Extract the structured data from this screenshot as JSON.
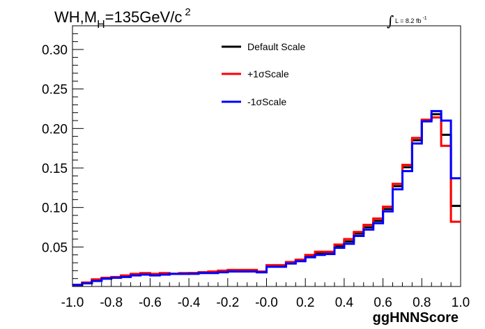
{
  "header": {
    "title_main": "WH,M",
    "title_sub": "H",
    "title_value": "=135GeV/c",
    "title_sup": "2",
    "lumi_label": "L = 8.2 fb",
    "lumi_sup": "-1"
  },
  "chart_data": {
    "type": "line",
    "xlabel": "ggHNNScore",
    "ylabel": "",
    "xlim": [
      -1.0,
      1.0
    ],
    "ylim": [
      0,
      0.33
    ],
    "x_ticks": [
      "-1.0",
      "-0.8",
      "-0.6",
      "-0.4",
      "-0.2",
      "-0.0",
      "0.2",
      "0.4",
      "0.6",
      "0.8",
      "1.0"
    ],
    "y_ticks": [
      "0.05",
      "0.10",
      "0.15",
      "0.20",
      "0.25",
      "0.30"
    ],
    "x_tick_values": [
      -1.0,
      -0.8,
      -0.6,
      -0.4,
      -0.2,
      0.0,
      0.2,
      0.4,
      0.6,
      0.8,
      1.0
    ],
    "y_tick_values": [
      0.05,
      0.1,
      0.15,
      0.2,
      0.25,
      0.3
    ],
    "bin_edges": [
      -1.0,
      -0.95,
      -0.9,
      -0.85,
      -0.8,
      -0.75,
      -0.7,
      -0.65,
      -0.6,
      -0.55,
      -0.5,
      -0.45,
      -0.4,
      -0.35,
      -0.3,
      -0.25,
      -0.2,
      -0.15,
      -0.1,
      -0.05,
      0.0,
      0.05,
      0.1,
      0.15,
      0.2,
      0.25,
      0.3,
      0.35,
      0.4,
      0.45,
      0.5,
      0.55,
      0.6,
      0.65,
      0.7,
      0.75,
      0.8,
      0.85,
      0.9,
      0.95,
      1.0
    ],
    "series": [
      {
        "name": "Default Scale",
        "color": "#000000",
        "values": [
          0.002,
          0.004,
          0.008,
          0.01,
          0.011,
          0.013,
          0.015,
          0.016,
          0.015,
          0.016,
          0.016,
          0.016,
          0.017,
          0.018,
          0.018,
          0.019,
          0.02,
          0.02,
          0.02,
          0.018,
          0.026,
          0.026,
          0.03,
          0.033,
          0.038,
          0.042,
          0.043,
          0.051,
          0.057,
          0.067,
          0.075,
          0.083,
          0.098,
          0.127,
          0.151,
          0.185,
          0.211,
          0.218,
          0.192,
          0.102
        ]
      },
      {
        "name": "+1σScale",
        "color": "#ff0000",
        "values": [
          0.002,
          0.005,
          0.009,
          0.011,
          0.012,
          0.014,
          0.016,
          0.017,
          0.016,
          0.017,
          0.016,
          0.017,
          0.017,
          0.018,
          0.019,
          0.02,
          0.021,
          0.021,
          0.021,
          0.019,
          0.027,
          0.027,
          0.031,
          0.034,
          0.04,
          0.044,
          0.044,
          0.053,
          0.06,
          0.069,
          0.078,
          0.086,
          0.101,
          0.13,
          0.154,
          0.188,
          0.211,
          0.214,
          0.178,
          0.082
        ]
      },
      {
        "name": "-1σScale",
        "color": "#0000ff",
        "values": [
          0.002,
          0.004,
          0.007,
          0.01,
          0.011,
          0.012,
          0.014,
          0.015,
          0.014,
          0.015,
          0.016,
          0.016,
          0.016,
          0.017,
          0.017,
          0.018,
          0.019,
          0.019,
          0.019,
          0.018,
          0.025,
          0.025,
          0.029,
          0.032,
          0.037,
          0.04,
          0.041,
          0.049,
          0.054,
          0.064,
          0.072,
          0.08,
          0.095,
          0.123,
          0.146,
          0.181,
          0.209,
          0.222,
          0.21,
          0.137
        ]
      }
    ],
    "legend_position": "top-center",
    "grid": false
  }
}
